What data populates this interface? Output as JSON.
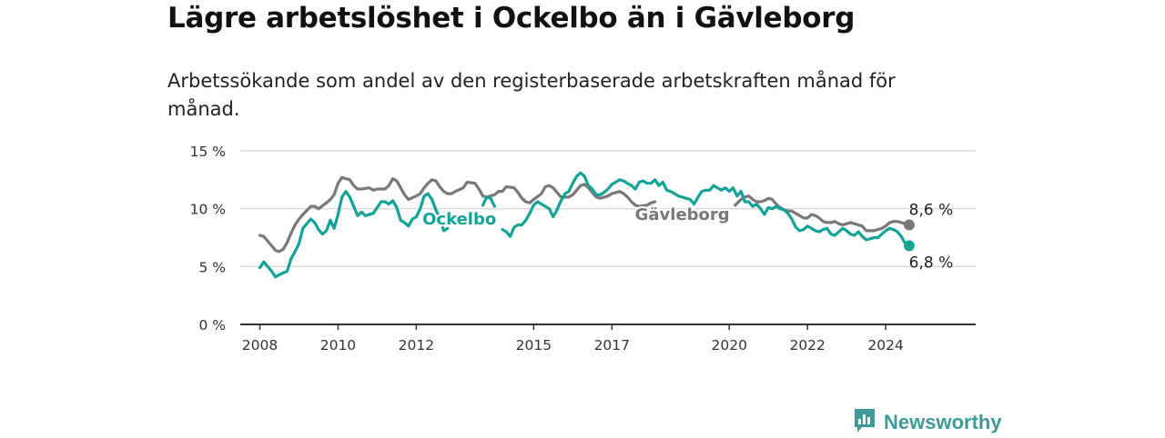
{
  "title": "Lägre arbetslöshet i Ockelbo än i Gävleborg",
  "subtitle": "Arbetssökande som andel av den registerbaserade arbetskraften månad för månad.",
  "brand": {
    "name": "Newsworthy",
    "icon": "bar-chart-logo-icon",
    "color": "#3d9a96"
  },
  "chart_data": {
    "type": "line",
    "title": "",
    "xlabel": "",
    "ylabel": "",
    "xlim": [
      2007.5,
      2026.3
    ],
    "ylim": [
      0,
      15
    ],
    "grid": true,
    "legend": "inline labels",
    "x_ticks": [
      2008,
      2010,
      2012,
      2015,
      2017,
      2020,
      2022,
      2024
    ],
    "x_tick_labels": [
      "2008",
      "2010",
      "2012",
      "2015",
      "2017",
      "2020",
      "2022",
      "2024"
    ],
    "y_ticks": [
      0,
      5,
      10,
      15
    ],
    "y_tick_labels": [
      "0 %",
      "5 %",
      "10 %",
      "15 %"
    ],
    "series": [
      {
        "name": "Gävleborg",
        "color": "#79777a",
        "end_label": "8,6 %",
        "points": [
          [
            2008.0,
            7.7
          ],
          [
            2008.1,
            7.6
          ],
          [
            2008.2,
            7.2
          ],
          [
            2008.3,
            6.8
          ],
          [
            2008.4,
            6.4
          ],
          [
            2008.5,
            6.3
          ],
          [
            2008.6,
            6.5
          ],
          [
            2008.7,
            7.1
          ],
          [
            2008.8,
            7.9
          ],
          [
            2008.9,
            8.6
          ],
          [
            2009.0,
            9.1
          ],
          [
            2009.1,
            9.5
          ],
          [
            2009.3,
            10.2
          ],
          [
            2009.4,
            10.2
          ],
          [
            2009.5,
            10.0
          ],
          [
            2009.7,
            10.5
          ],
          [
            2009.8,
            10.8
          ],
          [
            2009.9,
            11.2
          ],
          [
            2010.0,
            12.2
          ],
          [
            2010.1,
            12.7
          ],
          [
            2010.2,
            12.6
          ],
          [
            2010.3,
            12.5
          ],
          [
            2010.4,
            12.0
          ],
          [
            2010.5,
            11.7
          ],
          [
            2010.6,
            11.7
          ],
          [
            2010.8,
            11.8
          ],
          [
            2010.9,
            11.6
          ],
          [
            2011.0,
            11.7
          ],
          [
            2011.2,
            11.7
          ],
          [
            2011.3,
            12.0
          ],
          [
            2011.4,
            12.6
          ],
          [
            2011.5,
            12.4
          ],
          [
            2011.6,
            11.8
          ],
          [
            2011.7,
            11.2
          ],
          [
            2011.8,
            10.8
          ],
          [
            2012.0,
            11.1
          ],
          [
            2012.1,
            11.3
          ],
          [
            2012.2,
            11.8
          ],
          [
            2012.3,
            12.2
          ],
          [
            2012.4,
            12.5
          ],
          [
            2012.5,
            12.4
          ],
          [
            2012.6,
            11.9
          ],
          [
            2012.7,
            11.5
          ],
          [
            2012.8,
            11.3
          ],
          [
            2012.9,
            11.3
          ],
          [
            2013.0,
            11.5
          ],
          [
            2013.2,
            11.8
          ],
          [
            2013.3,
            12.3
          ],
          [
            2013.5,
            12.2
          ],
          [
            2013.6,
            11.7
          ],
          [
            2013.7,
            11.1
          ],
          [
            2013.8,
            11.0
          ],
          [
            2014.0,
            11.2
          ],
          [
            2014.1,
            11.5
          ],
          [
            2014.2,
            11.5
          ],
          [
            2014.3,
            11.9
          ],
          [
            2014.5,
            11.8
          ],
          [
            2014.6,
            11.4
          ],
          [
            2014.7,
            10.9
          ],
          [
            2014.8,
            10.6
          ],
          [
            2014.9,
            10.5
          ],
          [
            2015.0,
            10.8
          ],
          [
            2015.2,
            11.3
          ],
          [
            2015.3,
            11.9
          ],
          [
            2015.4,
            12.0
          ],
          [
            2015.5,
            11.8
          ],
          [
            2015.6,
            11.4
          ],
          [
            2015.7,
            11.0
          ],
          [
            2015.9,
            11.0
          ],
          [
            2016.0,
            11.2
          ],
          [
            2016.1,
            11.6
          ],
          [
            2016.2,
            12.0
          ],
          [
            2016.3,
            12.1
          ],
          [
            2016.4,
            11.8
          ],
          [
            2016.5,
            11.4
          ],
          [
            2016.6,
            11.0
          ],
          [
            2016.7,
            10.9
          ],
          [
            2016.9,
            11.1
          ],
          [
            2017.0,
            11.3
          ],
          [
            2017.2,
            11.5
          ],
          [
            2017.3,
            11.3
          ],
          [
            2017.4,
            11.0
          ],
          [
            2017.5,
            10.6
          ],
          [
            2017.6,
            10.3
          ],
          [
            2017.7,
            10.2
          ],
          [
            2017.9,
            10.3
          ],
          [
            2018.0,
            10.5
          ],
          [
            2018.1,
            10.6
          ]
        ],
        "points_after_label": [
          [
            2020.15,
            10.3
          ],
          [
            2020.3,
            10.8
          ],
          [
            2020.4,
            11.0
          ],
          [
            2020.5,
            11.1
          ],
          [
            2020.6,
            10.8
          ],
          [
            2020.7,
            10.6
          ],
          [
            2020.8,
            10.6
          ],
          [
            2020.9,
            10.7
          ],
          [
            2021.0,
            10.9
          ],
          [
            2021.1,
            10.8
          ],
          [
            2021.2,
            10.4
          ],
          [
            2021.3,
            10.1
          ],
          [
            2021.4,
            9.9
          ],
          [
            2021.5,
            9.8
          ],
          [
            2021.6,
            9.8
          ],
          [
            2021.7,
            9.6
          ],
          [
            2021.8,
            9.4
          ],
          [
            2021.9,
            9.2
          ],
          [
            2022.0,
            9.2
          ],
          [
            2022.1,
            9.5
          ],
          [
            2022.2,
            9.4
          ],
          [
            2022.3,
            9.2
          ],
          [
            2022.4,
            8.9
          ],
          [
            2022.5,
            8.8
          ],
          [
            2022.6,
            8.8
          ],
          [
            2022.7,
            8.9
          ],
          [
            2022.8,
            8.7
          ],
          [
            2022.9,
            8.6
          ],
          [
            2023.0,
            8.7
          ],
          [
            2023.1,
            8.8
          ],
          [
            2023.2,
            8.7
          ],
          [
            2023.3,
            8.6
          ],
          [
            2023.4,
            8.5
          ],
          [
            2023.5,
            8.1
          ],
          [
            2023.6,
            8.1
          ],
          [
            2023.7,
            8.1
          ],
          [
            2023.8,
            8.2
          ],
          [
            2023.9,
            8.3
          ],
          [
            2024.0,
            8.5
          ],
          [
            2024.1,
            8.8
          ],
          [
            2024.2,
            8.9
          ],
          [
            2024.3,
            8.9
          ],
          [
            2024.4,
            8.8
          ],
          [
            2024.5,
            8.7
          ],
          [
            2024.6,
            8.6
          ]
        ],
        "label_point": [
          2018.8,
          9.6
        ]
      },
      {
        "name": "Ockelbo",
        "color": "#13a296",
        "end_label": "6,8 %",
        "points": [
          [
            2008.0,
            4.9
          ],
          [
            2008.1,
            5.4
          ],
          [
            2008.2,
            5.0
          ],
          [
            2008.3,
            4.6
          ],
          [
            2008.4,
            4.1
          ],
          [
            2008.5,
            4.3
          ],
          [
            2008.7,
            4.6
          ],
          [
            2008.8,
            5.7
          ],
          [
            2008.9,
            6.3
          ],
          [
            2009.0,
            7.0
          ],
          [
            2009.1,
            8.3
          ],
          [
            2009.2,
            8.7
          ],
          [
            2009.3,
            9.1
          ],
          [
            2009.4,
            8.8
          ],
          [
            2009.5,
            8.2
          ],
          [
            2009.6,
            7.8
          ],
          [
            2009.7,
            8.1
          ],
          [
            2009.8,
            9.0
          ],
          [
            2009.9,
            8.3
          ],
          [
            2010.0,
            9.5
          ],
          [
            2010.1,
            11.0
          ],
          [
            2010.2,
            11.5
          ],
          [
            2010.3,
            11.0
          ],
          [
            2010.4,
            10.2
          ],
          [
            2010.5,
            9.4
          ],
          [
            2010.6,
            9.7
          ],
          [
            2010.7,
            9.4
          ],
          [
            2010.8,
            9.5
          ],
          [
            2010.9,
            9.6
          ],
          [
            2011.0,
            10.1
          ],
          [
            2011.1,
            10.6
          ],
          [
            2011.2,
            10.6
          ],
          [
            2011.3,
            10.4
          ],
          [
            2011.4,
            10.7
          ],
          [
            2011.5,
            10.1
          ],
          [
            2011.6,
            9.0
          ],
          [
            2011.7,
            8.8
          ],
          [
            2011.8,
            8.5
          ],
          [
            2011.9,
            9.1
          ],
          [
            2012.0,
            9.3
          ],
          [
            2012.1,
            10.0
          ],
          [
            2012.2,
            11.1
          ],
          [
            2012.3,
            11.3
          ],
          [
            2012.4,
            10.8
          ],
          [
            2012.5,
            9.9
          ],
          [
            2012.6,
            9.2
          ],
          [
            2012.7,
            8.1
          ],
          [
            2012.8,
            8.3
          ]
        ],
        "points_segment_2": [
          [
            2013.7,
            10.3
          ],
          [
            2013.8,
            11.0
          ],
          [
            2013.9,
            10.9
          ],
          [
            2014.0,
            10.2
          ]
        ],
        "points_segment_3": [
          [
            2014.2,
            8.2
          ],
          [
            2014.3,
            8.0
          ],
          [
            2014.4,
            7.6
          ],
          [
            2014.5,
            8.4
          ],
          [
            2014.6,
            8.6
          ],
          [
            2014.7,
            8.6
          ],
          [
            2014.8,
            9.0
          ],
          [
            2014.9,
            9.6
          ],
          [
            2015.0,
            10.3
          ],
          [
            2015.1,
            10.6
          ],
          [
            2015.2,
            10.4
          ],
          [
            2015.3,
            10.2
          ],
          [
            2015.4,
            10.0
          ],
          [
            2015.5,
            9.3
          ],
          [
            2015.6,
            9.9
          ],
          [
            2015.7,
            10.7
          ],
          [
            2015.8,
            11.3
          ],
          [
            2015.9,
            11.5
          ],
          [
            2016.0,
            12.2
          ],
          [
            2016.1,
            12.8
          ],
          [
            2016.2,
            13.1
          ],
          [
            2016.3,
            12.8
          ],
          [
            2016.4,
            12.0
          ],
          [
            2016.5,
            11.7
          ],
          [
            2016.6,
            11.2
          ],
          [
            2016.7,
            11.2
          ],
          [
            2016.8,
            11.4
          ],
          [
            2016.9,
            11.7
          ],
          [
            2017.0,
            12.1
          ],
          [
            2017.1,
            12.3
          ],
          [
            2017.2,
            12.5
          ],
          [
            2017.3,
            12.4
          ],
          [
            2017.4,
            12.2
          ],
          [
            2017.5,
            12.0
          ],
          [
            2017.6,
            11.7
          ],
          [
            2017.7,
            12.3
          ],
          [
            2017.8,
            12.4
          ],
          [
            2017.9,
            12.2
          ],
          [
            2018.0,
            12.2
          ],
          [
            2018.1,
            12.5
          ],
          [
            2018.2,
            12.0
          ],
          [
            2018.3,
            12.3
          ],
          [
            2018.4,
            11.6
          ],
          [
            2018.5,
            11.5
          ],
          [
            2018.6,
            11.3
          ],
          [
            2018.7,
            11.1
          ],
          [
            2018.8,
            11.0
          ],
          [
            2018.9,
            10.9
          ],
          [
            2019.0,
            10.8
          ],
          [
            2019.1,
            10.4
          ],
          [
            2019.2,
            11.0
          ],
          [
            2019.3,
            11.5
          ],
          [
            2019.4,
            11.6
          ],
          [
            2019.5,
            11.6
          ],
          [
            2019.6,
            12.0
          ],
          [
            2019.7,
            11.8
          ],
          [
            2019.8,
            11.6
          ],
          [
            2019.9,
            11.8
          ],
          [
            2020.0,
            11.5
          ],
          [
            2020.1,
            11.8
          ],
          [
            2020.2,
            11.1
          ],
          [
            2020.3,
            11.5
          ],
          [
            2020.4,
            10.6
          ],
          [
            2020.5,
            10.6
          ],
          [
            2020.6,
            10.2
          ],
          [
            2020.7,
            10.4
          ],
          [
            2020.8,
            10.0
          ],
          [
            2020.9,
            9.5
          ],
          [
            2021.0,
            10.1
          ],
          [
            2021.1,
            10.0
          ],
          [
            2021.2,
            10.2
          ],
          [
            2021.3,
            10.0
          ],
          [
            2021.4,
            9.9
          ],
          [
            2021.5,
            9.6
          ],
          [
            2021.6,
            9.1
          ],
          [
            2021.7,
            8.4
          ],
          [
            2021.8,
            8.1
          ],
          [
            2021.9,
            8.2
          ],
          [
            2022.0,
            8.5
          ],
          [
            2022.1,
            8.3
          ],
          [
            2022.2,
            8.1
          ],
          [
            2022.3,
            8.0
          ],
          [
            2022.4,
            8.2
          ],
          [
            2022.5,
            8.3
          ],
          [
            2022.6,
            7.8
          ],
          [
            2022.7,
            7.7
          ],
          [
            2022.8,
            8.0
          ],
          [
            2022.9,
            8.3
          ],
          [
            2023.0,
            8.1
          ],
          [
            2023.1,
            7.8
          ],
          [
            2023.2,
            7.7
          ],
          [
            2023.3,
            8.0
          ],
          [
            2023.4,
            7.6
          ],
          [
            2023.5,
            7.3
          ],
          [
            2023.6,
            7.4
          ],
          [
            2023.7,
            7.5
          ],
          [
            2023.8,
            7.5
          ],
          [
            2023.9,
            7.8
          ],
          [
            2024.0,
            8.1
          ],
          [
            2024.1,
            8.3
          ],
          [
            2024.2,
            8.2
          ],
          [
            2024.3,
            8.0
          ],
          [
            2024.4,
            7.6
          ],
          [
            2024.5,
            7.0
          ],
          [
            2024.6,
            6.8
          ]
        ],
        "label_point": [
          2013.1,
          9.2
        ]
      }
    ]
  }
}
